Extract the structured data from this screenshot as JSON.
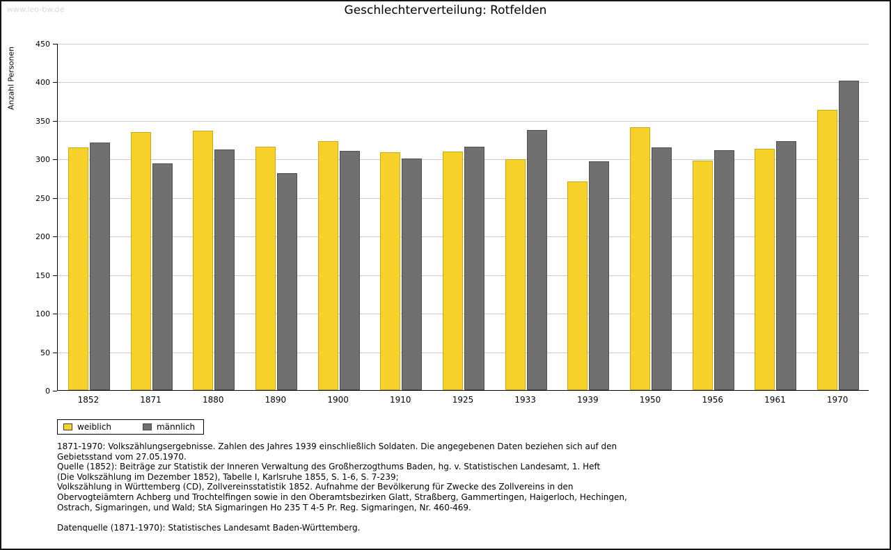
{
  "watermark": "www.leo-bw.de",
  "chart_data": {
    "type": "bar",
    "title": "Geschlechterverteilung: Rotfelden",
    "xlabel": "",
    "ylabel": "Anzahl Personen",
    "ylim": [
      0,
      450
    ],
    "ytick_step": 50,
    "grid": true,
    "legend_position": "bottom-left",
    "categories": [
      "1852",
      "1871",
      "1880",
      "1890",
      "1900",
      "1910",
      "1925",
      "1933",
      "1939",
      "1950",
      "1956",
      "1961",
      "1970"
    ],
    "series": [
      {
        "name": "weiblich",
        "color": "#F7D22A",
        "border": "#C9AA10",
        "values": [
          315,
          335,
          336,
          316,
          323,
          308,
          309,
          299,
          271,
          341,
          298,
          313,
          363
        ]
      },
      {
        "name": "männlich",
        "color": "#707070",
        "border": "#4E4E4E",
        "values": [
          321,
          294,
          312,
          281,
          310,
          300,
          316,
          337,
          297,
          315,
          311,
          323,
          401
        ]
      }
    ]
  },
  "footer": {
    "lines": [
      "1871-1970: Volkszählungsergebnisse. Zahlen des Jahres 1939 einschließlich Soldaten. Die angegebenen Daten beziehen sich auf den",
      "Gebietsstand vom 27.05.1970.",
      "Quelle (1852): Beiträge zur Statistik der Inneren Verwaltung des Großherzogthums Baden, hg. v. Statistischen Landesamt, 1. Heft",
      "(Die Volkszählung im Dezember 1852), Tabelle I, Karlsruhe 1855, S. 1-6, S. 7-239;",
      "Volkszählung in Württemberg (CD), Zollvereinsstatistik 1852. Aufnahme der Bevölkerung für Zwecke des Zollvereins in den",
      "Obervogteiämtern Achberg und Trochtelfingen sowie in den Oberamtsbezirken Glatt, Straßberg, Gammertingen, Haigerloch, Hechingen,",
      "Ostrach, Sigmaringen, und Wald; StA Sigmaringen Ho 235 T 4-5 Pr. Reg. Sigmaringen, Nr. 460-469.",
      "",
      "Datenquelle (1871-1970): Statistisches Landesamt Baden-Württemberg."
    ]
  }
}
